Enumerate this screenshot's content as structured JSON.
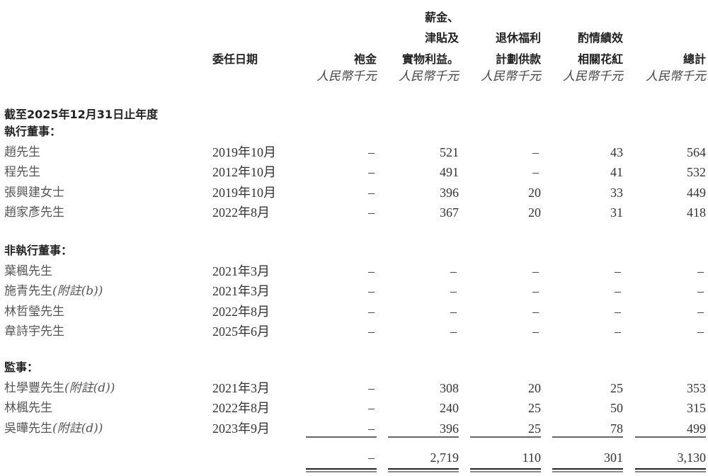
{
  "header": {
    "appointment_date": "委任日期",
    "columns": [
      {
        "lines": [
          "",
          "",
          "袍金"
        ],
        "unit": "人民幣千元"
      },
      {
        "lines": [
          "薪金、",
          "津貼及",
          "實物利益。"
        ],
        "unit": "人民幣千元"
      },
      {
        "lines": [
          "",
          "退休福利",
          "計劃供款"
        ],
        "unit": "人民幣千元"
      },
      {
        "lines": [
          "",
          "酌情績效",
          "相關花紅"
        ],
        "unit": "人民幣千元"
      },
      {
        "lines": [
          "",
          "",
          "總計"
        ],
        "unit": "人民幣千元"
      }
    ]
  },
  "period_title": "截至2025年12月31日止年度",
  "sections": [
    {
      "title": "執行董事：",
      "rows": [
        {
          "name": "趙先生",
          "note": "",
          "date": "2019年10月",
          "values": [
            "–",
            "521",
            "–",
            "43",
            "564"
          ]
        },
        {
          "name": "程先生",
          "note": "",
          "date": "2012年10月",
          "values": [
            "–",
            "491",
            "–",
            "41",
            "532"
          ]
        },
        {
          "name": "張興建女士",
          "note": "",
          "date": "2019年10月",
          "values": [
            "–",
            "396",
            "20",
            "33",
            "449"
          ]
        },
        {
          "name": "趙家彥先生",
          "note": "",
          "date": "2022年8月",
          "values": [
            "–",
            "367",
            "20",
            "31",
            "418"
          ]
        }
      ]
    },
    {
      "title": "非執行董事：",
      "rows": [
        {
          "name": "葉楓先生",
          "note": "",
          "date": "2021年3月",
          "values": [
            "–",
            "–",
            "–",
            "–",
            "–"
          ]
        },
        {
          "name": "施青先生",
          "note": "(附註(b))",
          "date": "2021年3月",
          "values": [
            "–",
            "–",
            "–",
            "–",
            "–"
          ]
        },
        {
          "name": "林哲瑩先生",
          "note": "",
          "date": "2022年8月",
          "values": [
            "–",
            "–",
            "–",
            "–",
            "–"
          ]
        },
        {
          "name": "韋詩宇先生",
          "note": "",
          "date": "2025年6月",
          "values": [
            "–",
            "–",
            "–",
            "–",
            "–"
          ]
        }
      ]
    },
    {
      "title": "監事：",
      "rows": [
        {
          "name": "杜學豐先生",
          "note": "(附註(d))",
          "date": "2021年3月",
          "values": [
            "–",
            "308",
            "20",
            "25",
            "353"
          ]
        },
        {
          "name": "林楓先生",
          "note": "",
          "date": "2022年8月",
          "values": [
            "–",
            "240",
            "25",
            "50",
            "315"
          ]
        },
        {
          "name": "吳曄先生",
          "note": "(附註(d))",
          "date": "2023年9月",
          "values": [
            "–",
            "396",
            "25",
            "78",
            "499"
          ]
        }
      ]
    }
  ],
  "totals": [
    "–",
    "2,719",
    "110",
    "301",
    "3,130"
  ]
}
